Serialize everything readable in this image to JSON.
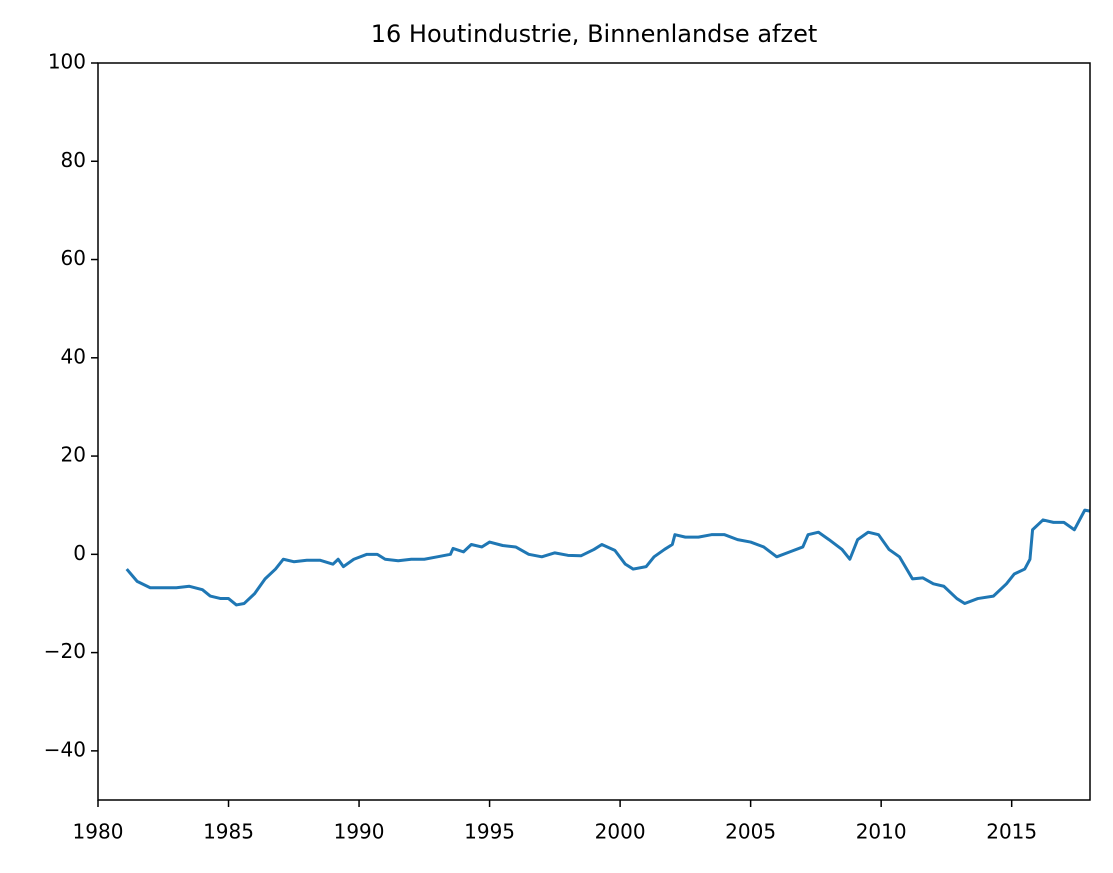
{
  "chart_data": {
    "type": "line",
    "title": "16 Houtindustrie, Binnenlandse afzet",
    "x": [
      1981.1,
      1981.5,
      1982.0,
      1982.5,
      1983.0,
      1983.5,
      1984.0,
      1984.3,
      1984.7,
      1985.0,
      1985.3,
      1985.6,
      1986.0,
      1986.4,
      1986.8,
      1987.1,
      1987.5,
      1988.0,
      1988.5,
      1989.0,
      1989.2,
      1989.4,
      1989.8,
      1990.3,
      1990.7,
      1991.0,
      1991.5,
      1992.0,
      1992.5,
      1993.0,
      1993.5,
      1993.6,
      1994.0,
      1994.3,
      1994.7,
      1995.0,
      1995.5,
      1996.0,
      1996.5,
      1997.0,
      1997.5,
      1998.0,
      1998.5,
      1999.0,
      1999.3,
      1999.8,
      2000.2,
      2000.5,
      2001.0,
      2001.3,
      2001.7,
      2002.0,
      2002.1,
      2002.5,
      2003.0,
      2003.5,
      2004.0,
      2004.5,
      2005.0,
      2005.5,
      2006.0,
      2006.5,
      2007.0,
      2007.2,
      2007.6,
      2008.0,
      2008.5,
      2008.8,
      2009.1,
      2009.5,
      2009.9,
      2010.3,
      2010.7,
      2011.2,
      2011.6,
      2012.0,
      2012.4,
      2012.9,
      2013.2,
      2013.7,
      2014.3,
      2014.8,
      2015.1,
      2015.5,
      2015.7,
      2015.8,
      2016.2,
      2016.6,
      2017.0,
      2017.4,
      2017.8,
      2018.0
    ],
    "series": [
      {
        "color": "#1f77b4",
        "values": [
          -3,
          -5.5,
          -6.8,
          -6.8,
          -6.8,
          -6.5,
          -7.2,
          -8.5,
          -9,
          -9,
          -10.3,
          -10,
          -8,
          -5,
          -3,
          -1,
          -1.5,
          -1.2,
          -1.2,
          -2,
          -1,
          -2.5,
          -1,
          0,
          0,
          -1,
          -1.3,
          -1,
          -1,
          -0.5,
          0,
          1.2,
          0.5,
          2,
          1.5,
          2.5,
          1.8,
          1.5,
          0,
          -0.5,
          0.3,
          -0.2,
          -0.3,
          1,
          2,
          0.8,
          -2,
          -3,
          -2.5,
          -0.5,
          1,
          2,
          4,
          3.5,
          3.5,
          4,
          4,
          3,
          2.5,
          1.5,
          -0.5,
          0.5,
          1.5,
          4,
          4.5,
          3,
          1,
          -1,
          3,
          4.5,
          4,
          1,
          -0.5,
          -5,
          -4.8,
          -6,
          -6.5,
          -9,
          -10,
          -9,
          -8.5,
          -6,
          -4,
          -3,
          -1,
          5,
          7,
          6.5,
          6.5,
          5,
          9,
          8.8
        ]
      }
    ],
    "xlim": [
      1980,
      2018
    ],
    "xticks": [
      1980,
      1985,
      1990,
      1995,
      2000,
      2005,
      2010,
      2015
    ],
    "ylim": [
      -50,
      100
    ],
    "yticks": [
      {
        "value": -40,
        "label": "−40"
      },
      {
        "value": -20,
        "label": "−20"
      },
      0,
      20,
      40,
      60,
      80,
      100
    ]
  }
}
